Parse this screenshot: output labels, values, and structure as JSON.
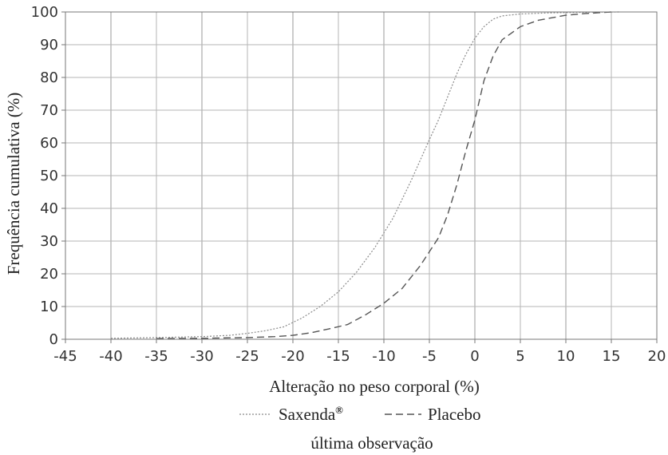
{
  "chart_data": {
    "type": "line",
    "title": "",
    "xlabel": "Alteração no peso corporal (%)",
    "ylabel": "Frequência cumulativa (%)",
    "xlim": [
      -45,
      20
    ],
    "ylim": [
      0,
      100
    ],
    "xticks": [
      -45,
      -40,
      -35,
      -30,
      -25,
      -20,
      -15,
      -10,
      -5,
      0,
      5,
      10,
      15,
      20
    ],
    "yticks": [
      0,
      10,
      20,
      30,
      40,
      50,
      60,
      70,
      80,
      90,
      100
    ],
    "grid": true,
    "legend_position": "bottom",
    "caption": "última observação",
    "series": [
      {
        "name": "Saxenda",
        "name_suffix": "®",
        "style": "dotted",
        "color": "#8a8a8a",
        "points": [
          [
            -40,
            0.3
          ],
          [
            -35,
            0.5
          ],
          [
            -30,
            0.8
          ],
          [
            -27,
            1.2
          ],
          [
            -25,
            1.8
          ],
          [
            -23,
            2.6
          ],
          [
            -21,
            3.8
          ],
          [
            -19,
            6.5
          ],
          [
            -17,
            10
          ],
          [
            -15,
            14.5
          ],
          [
            -13,
            20.5
          ],
          [
            -11,
            28
          ],
          [
            -9,
            37
          ],
          [
            -7,
            48.5
          ],
          [
            -5,
            61
          ],
          [
            -4,
            67
          ],
          [
            -3,
            74
          ],
          [
            -2,
            81
          ],
          [
            -1,
            87
          ],
          [
            0,
            92
          ],
          [
            1,
            95.5
          ],
          [
            2,
            97.8
          ],
          [
            3,
            98.8
          ],
          [
            5,
            99.4
          ],
          [
            8,
            99.7
          ],
          [
            12,
            99.9
          ],
          [
            16,
            100
          ]
        ]
      },
      {
        "name": "Placebo",
        "name_suffix": "",
        "style": "dashed",
        "color": "#555555",
        "points": [
          [
            -35,
            0.2
          ],
          [
            -30,
            0.3
          ],
          [
            -25,
            0.5
          ],
          [
            -22,
            0.8
          ],
          [
            -20,
            1.2
          ],
          [
            -18,
            2
          ],
          [
            -16,
            3.2
          ],
          [
            -14,
            4.5
          ],
          [
            -12,
            7.5
          ],
          [
            -10,
            11
          ],
          [
            -8,
            15.5
          ],
          [
            -6,
            22.5
          ],
          [
            -4,
            31
          ],
          [
            -3,
            38
          ],
          [
            -2,
            47
          ],
          [
            -1,
            57.5
          ],
          [
            0,
            67
          ],
          [
            1,
            79
          ],
          [
            2,
            86.5
          ],
          [
            3,
            91.5
          ],
          [
            5,
            95.5
          ],
          [
            7,
            97.5
          ],
          [
            10,
            99
          ],
          [
            12,
            99.5
          ],
          [
            15,
            100
          ]
        ]
      }
    ]
  }
}
